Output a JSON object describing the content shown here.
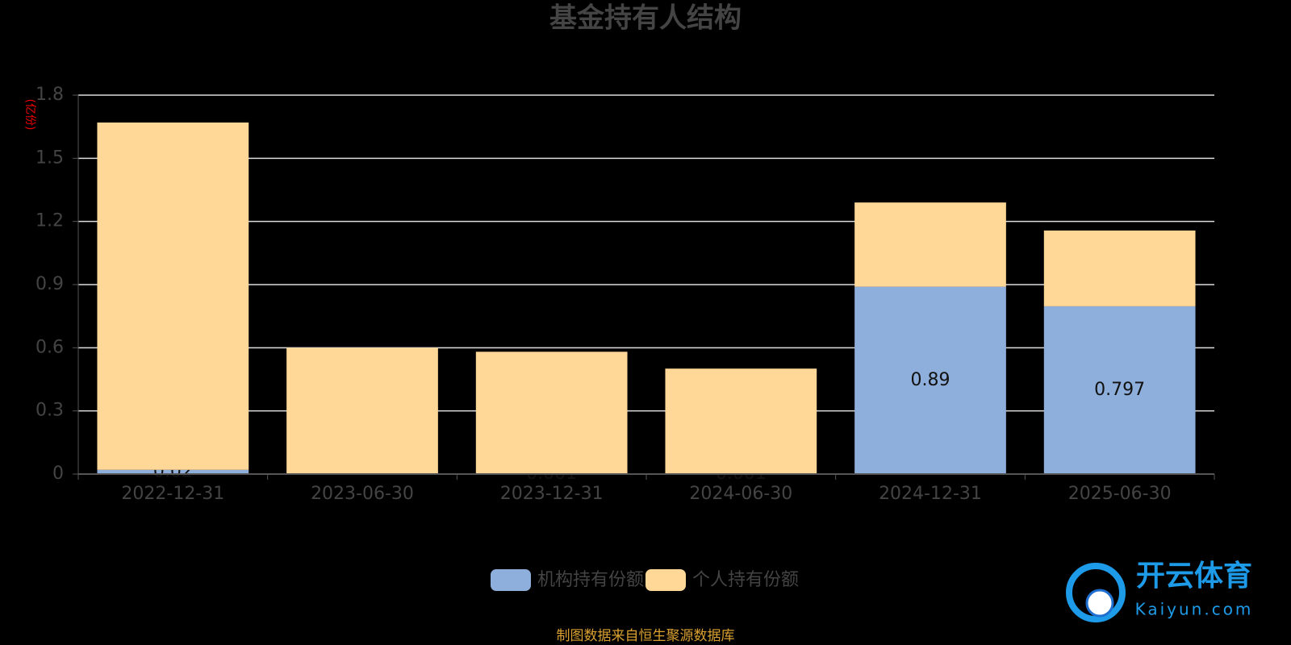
{
  "chart_data": {
    "type": "stacked-bar",
    "title": "基金持有人结构",
    "y_label": "(亿份)",
    "categories": [
      "2022-12-31",
      "2023-06-30",
      "2023-12-31",
      "2024-06-30",
      "2024-12-31",
      "2025-06-30"
    ],
    "series": [
      {
        "name": "机构持有份额",
        "color": "#8eaedb",
        "values": [
          0.02,
          0,
          0.001,
          0.001,
          0.89,
          0.797
        ]
      },
      {
        "name": "个人持有份额",
        "color": "#ffd796",
        "values": [
          1.65,
          0.6,
          0.58,
          0.5,
          0.4,
          0.36
        ]
      }
    ],
    "ylim": [
      0,
      1.8
    ],
    "yticks": [
      0,
      0.3,
      0.6,
      0.9,
      1.2,
      1.5,
      1.8
    ],
    "grid": true,
    "legend": "bottom",
    "source": "制图数据来自恒生聚源数据库",
    "watermark": {
      "name": "开云体育",
      "site": "Kaiyun.com"
    }
  }
}
